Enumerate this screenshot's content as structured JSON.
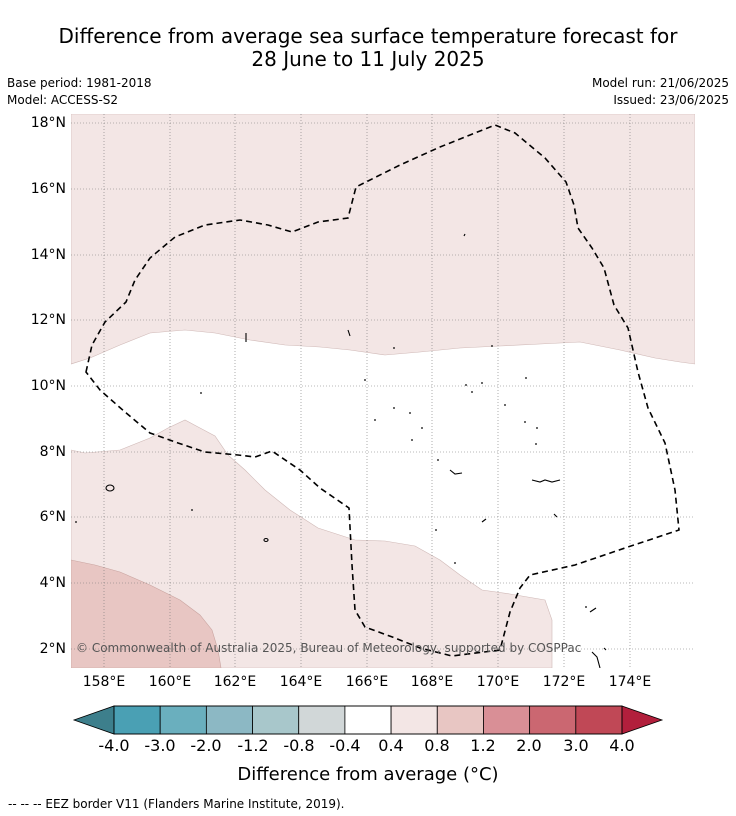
{
  "title_line1": "Difference from average sea surface temperature forecast for",
  "title_line2": "28 June to 11 July 2025",
  "base_period": "Base period: 1981-2018",
  "model": "Model: ACCESS-S2",
  "model_run": "Model run: 21/06/2025",
  "issued": "Issued: 23/06/2025",
  "lat_labels": [
    "18°N",
    "16°N",
    "14°N",
    "12°N",
    "10°N",
    "8°N",
    "6°N",
    "4°N",
    "2°N"
  ],
  "lon_labels": [
    "158°E",
    "160°E",
    "162°E",
    "164°E",
    "166°E",
    "168°E",
    "170°E",
    "172°E",
    "174°E"
  ],
  "credit": "© Commonwealth of Australia 2025, Bureau of Meteorology, supported by COSPPac",
  "colorbar": {
    "title": "Difference from average (°C)",
    "ticks": [
      "-4.0",
      "-3.0",
      "-2.0",
      "-1.2",
      "-0.8",
      "-0.4",
      "0.4",
      "0.8",
      "1.2",
      "2.0",
      "3.0",
      "4.0"
    ],
    "colors": [
      "#3d7f8c",
      "#4aa0b4",
      "#6aafbe",
      "#8cb8c4",
      "#a8c7cb",
      "#d1d7d8",
      "#ffffff",
      "#f3e6e5",
      "#e8c6c3",
      "#d98f96",
      "#cb6771",
      "#c04856",
      "#b21f3c"
    ]
  },
  "footnote": "--  --  -- EEZ border V11 (Flanders Marine Institute, 2019).",
  "map_colors": {
    "band_0_4_0_8": "#f3e6e5",
    "band_0_8_1_2": "#e8c6c3"
  }
}
